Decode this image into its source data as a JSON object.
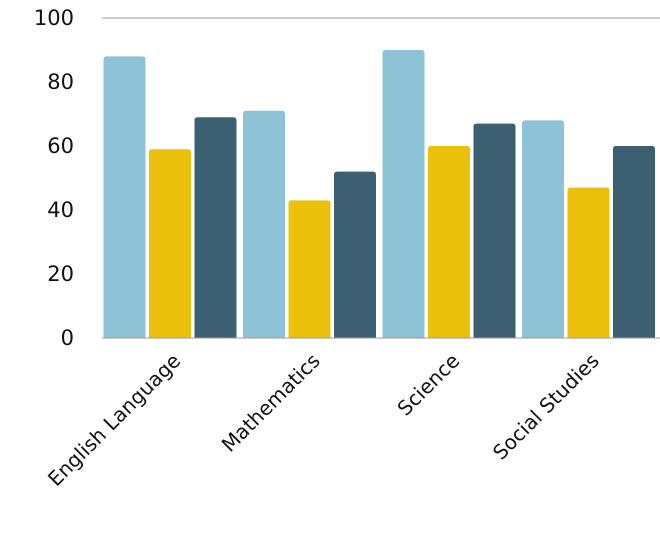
{
  "chart_data": {
    "type": "bar",
    "categories": [
      "English Language",
      "Mathematics",
      "Science",
      "Social Studies"
    ],
    "series": [
      {
        "values": [
          88,
          71,
          90,
          68
        ],
        "color": "#8ec3d7"
      },
      {
        "values": [
          59,
          43,
          60,
          47
        ],
        "color": "#ebc00a"
      },
      {
        "values": [
          69,
          52,
          67,
          60
        ],
        "color": "#3d5f72"
      }
    ],
    "ylim": [
      0,
      100
    ],
    "yticks": [
      0,
      20,
      40,
      60,
      80,
      100
    ],
    "grid": false,
    "legend": "none",
    "title": "",
    "xlabel": "",
    "ylabel": ""
  }
}
